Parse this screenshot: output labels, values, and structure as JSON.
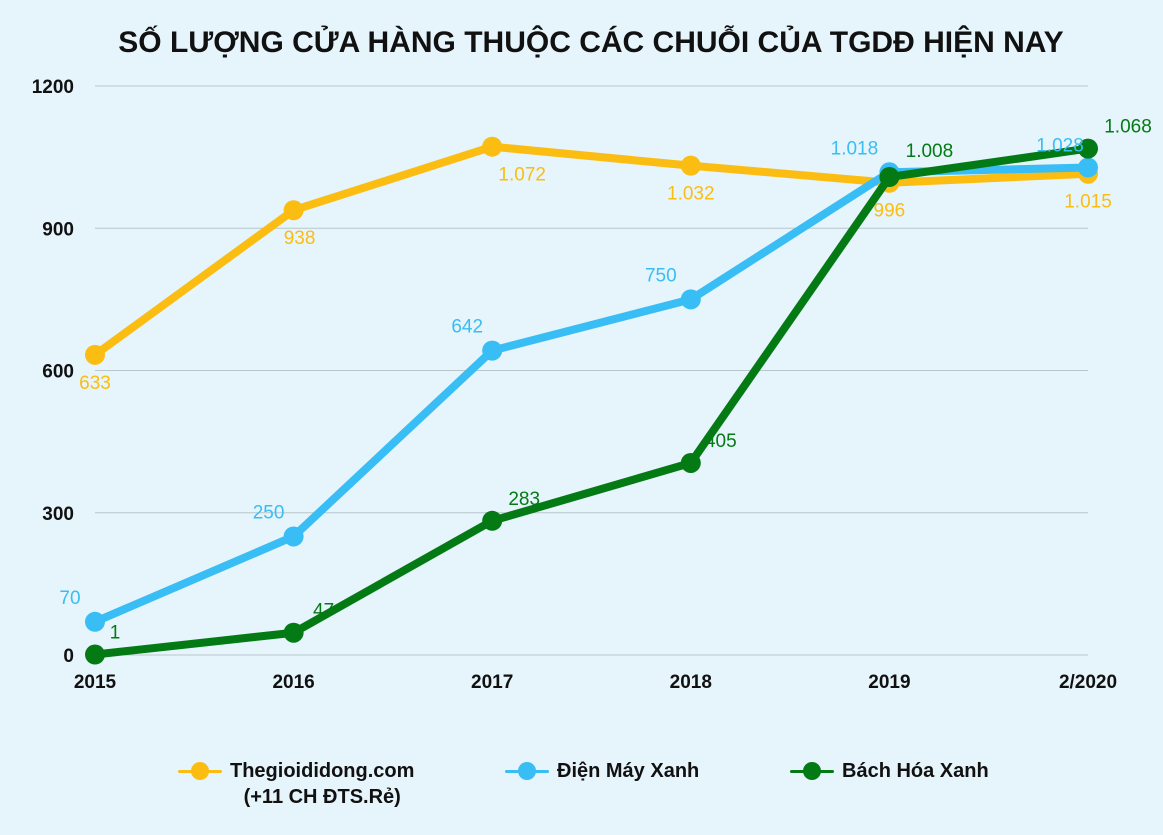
{
  "chart_data": {
    "type": "line",
    "title": "SỐ LƯỢNG CỬA HÀNG THUỘC CÁC CHUỖI CỦA TGDĐ HIỆN NAY",
    "categories": [
      "2015",
      "2016",
      "2017",
      "2018",
      "2019",
      "2/2020"
    ],
    "ylim": [
      0,
      1200
    ],
    "yticks": [
      0,
      300,
      600,
      900,
      1200
    ],
    "grid": true,
    "legend_position": "bottom",
    "series": [
      {
        "name": "Thegioididong.com",
        "name_line2": "(+11 CH ĐTS.Rẻ)",
        "color": "#fbbd12",
        "values": [
          633,
          938,
          1072,
          1032,
          996,
          1015
        ],
        "labels": [
          "633",
          "938",
          "1.072",
          "1.032",
          "996",
          "1.015"
        ]
      },
      {
        "name": "Điện Máy Xanh",
        "color": "#38bdf5",
        "values": [
          70,
          250,
          642,
          750,
          1018,
          1028
        ],
        "labels": [
          "70",
          "250",
          "642",
          "750",
          "1.018",
          "1.028"
        ]
      },
      {
        "name": "Bách Hóa Xanh",
        "color": "#047a14",
        "values": [
          1,
          47,
          283,
          405,
          1008,
          1068
        ],
        "labels": [
          "1",
          "47",
          "283",
          "405",
          "1.008",
          "1.068"
        ]
      }
    ]
  }
}
